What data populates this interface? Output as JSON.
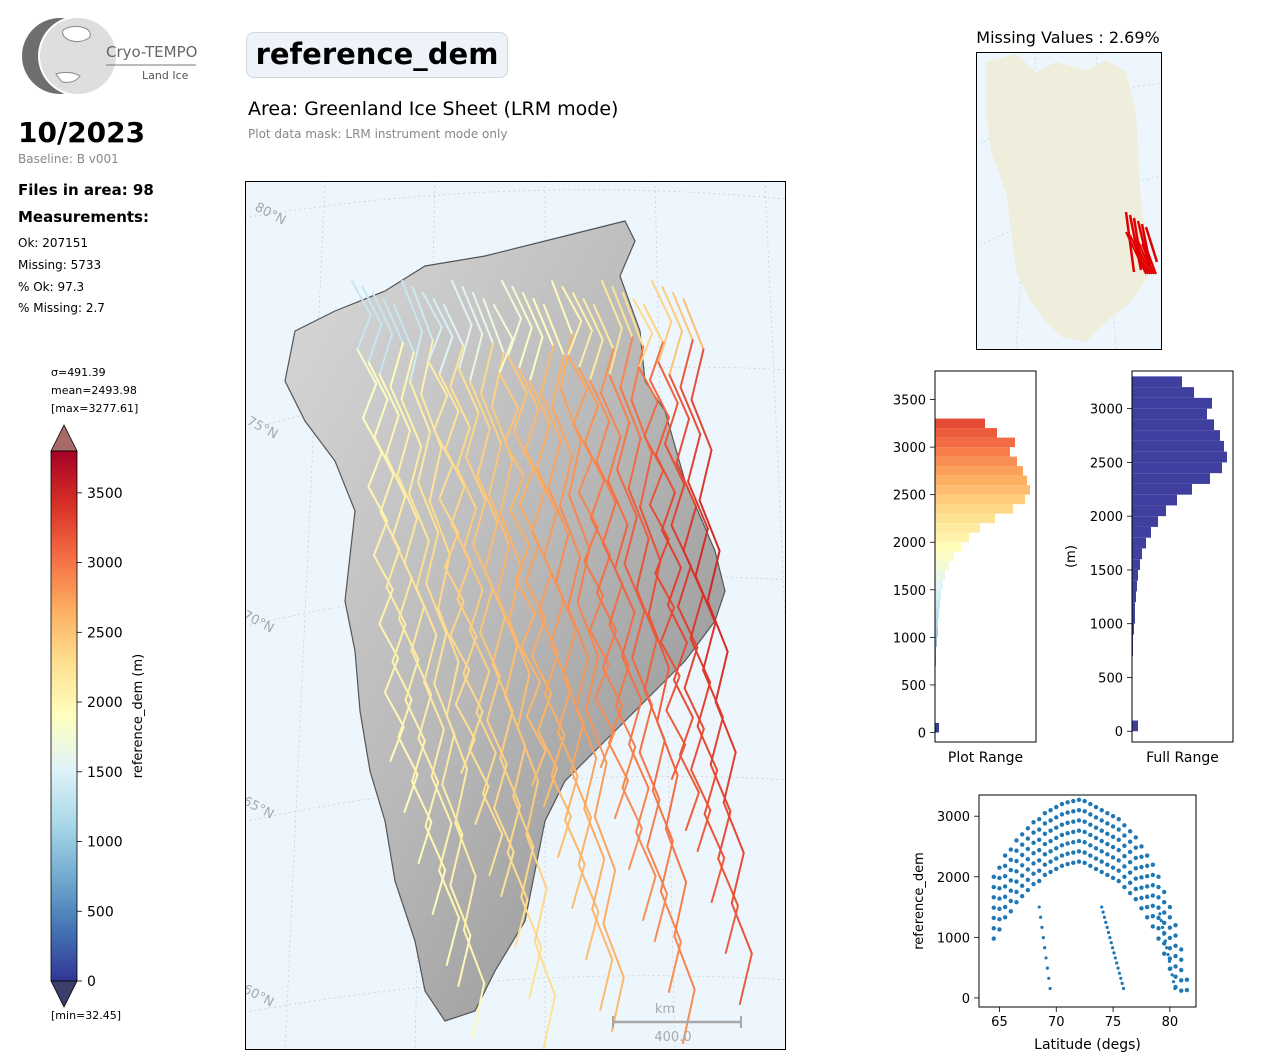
{
  "logo": {
    "name": "Cryo-TEMPO",
    "sub": "Land Ice"
  },
  "header": {
    "date": "10/2023",
    "baseline": "Baseline: B v001",
    "files": "Files in area: 98",
    "measurements_label": "Measurements:",
    "ok": "Ok: 207151",
    "missing": "Missing: 5733",
    "pct_ok": "% Ok: 97.3",
    "pct_missing": "% Missing: 2.7"
  },
  "title": "reference_dem",
  "area": "Area: Greenland Ice Sheet (LRM mode)",
  "mask_note": "Plot data mask: LRM instrument mode only",
  "colorbar": {
    "sigma": "σ=491.39",
    "mean": "mean=2493.98",
    "max": "[max=3277.61]",
    "min": "[min=32.45]",
    "label": "reference_dem (m)",
    "ticks": [
      "0",
      "500",
      "1000",
      "1500",
      "2000",
      "2500",
      "3000",
      "3500"
    ],
    "range": [
      0,
      3800
    ],
    "colors": [
      "#313695",
      "#4575b4",
      "#74add1",
      "#abd9e9",
      "#e0f3f8",
      "#ffffbf",
      "#fee090",
      "#fdae61",
      "#f46d43",
      "#d73027",
      "#a50026"
    ]
  },
  "map": {
    "lat_labels_left": [
      "80°N",
      "75°N",
      "70°N",
      "65°N",
      "60°N"
    ],
    "lat_labels_right": [
      "75°N",
      "70°N",
      "65°N",
      "60°N"
    ],
    "scalebar_unit": "km",
    "scalebar_value": "400.0",
    "ocean_color": "#eef6fd"
  },
  "missing_map": {
    "title": "Missing Values : 2.69%",
    "land_color": "#efeedd",
    "track_color": "#e00000"
  },
  "chart_data": [
    {
      "type": "bar",
      "name": "plot-range-histogram",
      "orientation": "horizontal",
      "xlabel": "Plot Range",
      "ylabel": "",
      "yticks": [
        0,
        500,
        1000,
        1500,
        2000,
        2500,
        3000,
        3500
      ],
      "ylim": [
        -100,
        3800
      ],
      "bins": [
        0,
        100,
        200,
        300,
        400,
        500,
        600,
        700,
        800,
        900,
        1000,
        1100,
        1200,
        1300,
        1400,
        1500,
        1600,
        1700,
        1800,
        1900,
        2000,
        2100,
        2200,
        2300,
        2400,
        2500,
        2600,
        2700,
        2800,
        2900,
        3000,
        3100,
        3200
      ],
      "counts": [
        0.04,
        0.0,
        0.0,
        0.0,
        0.0,
        0.0,
        0.0,
        0.01,
        0.01,
        0.02,
        0.03,
        0.03,
        0.04,
        0.05,
        0.06,
        0.08,
        0.1,
        0.14,
        0.19,
        0.26,
        0.34,
        0.45,
        0.6,
        0.78,
        0.9,
        0.95,
        0.92,
        0.88,
        0.82,
        0.75,
        0.8,
        0.62,
        0.5
      ]
    },
    {
      "type": "bar",
      "name": "full-range-histogram",
      "orientation": "horizontal",
      "xlabel": "Full Range",
      "ylabel": "(m)",
      "yticks": [
        0,
        500,
        1000,
        1500,
        2000,
        2500,
        3000
      ],
      "ylim": [
        -100,
        3350
      ],
      "bins": [
        0,
        100,
        200,
        300,
        400,
        500,
        600,
        700,
        800,
        900,
        1000,
        1100,
        1200,
        1300,
        1400,
        1500,
        1600,
        1700,
        1800,
        1900,
        2000,
        2100,
        2200,
        2300,
        2400,
        2500,
        2600,
        2700,
        2800,
        2900,
        3000,
        3100,
        3200
      ],
      "counts": [
        0.06,
        0.0,
        0.0,
        0.0,
        0.0,
        0.0,
        0.0,
        0.01,
        0.01,
        0.02,
        0.03,
        0.03,
        0.04,
        0.05,
        0.06,
        0.08,
        0.1,
        0.14,
        0.19,
        0.26,
        0.34,
        0.45,
        0.6,
        0.78,
        0.9,
        0.95,
        0.92,
        0.88,
        0.82,
        0.75,
        0.8,
        0.62,
        0.5
      ],
      "color": "#3f3fa0"
    },
    {
      "type": "scatter",
      "name": "latitude-scatter",
      "xlabel": "Latitude (degs)",
      "ylabel": "reference_dem",
      "xticks": [
        65,
        70,
        75,
        80
      ],
      "yticks": [
        0,
        1000,
        2000,
        3000
      ],
      "xlim": [
        63.2,
        82.3
      ],
      "ylim": [
        -150,
        3350
      ],
      "color": "#1f77b4",
      "x": [
        64.5,
        65,
        65.5,
        66,
        66.5,
        67,
        67.5,
        68,
        68.5,
        69,
        69.5,
        70,
        70.5,
        71,
        71.5,
        72,
        72.5,
        73,
        73.5,
        74,
        74.5,
        75,
        75.5,
        76,
        76.5,
        77,
        77.5,
        78,
        78.5,
        79,
        79.5,
        80,
        80.5,
        81,
        81.5
      ],
      "y": [
        2000,
        2150,
        2350,
        2450,
        2600,
        2700,
        2800,
        2900,
        2950,
        3050,
        3100,
        3150,
        3200,
        3230,
        3250,
        3270,
        3250,
        3200,
        3150,
        3100,
        3050,
        3000,
        2950,
        2850,
        2750,
        2650,
        2500,
        2350,
        2200,
        2000,
        1750,
        1500,
        1200,
        800,
        300
      ]
    }
  ]
}
